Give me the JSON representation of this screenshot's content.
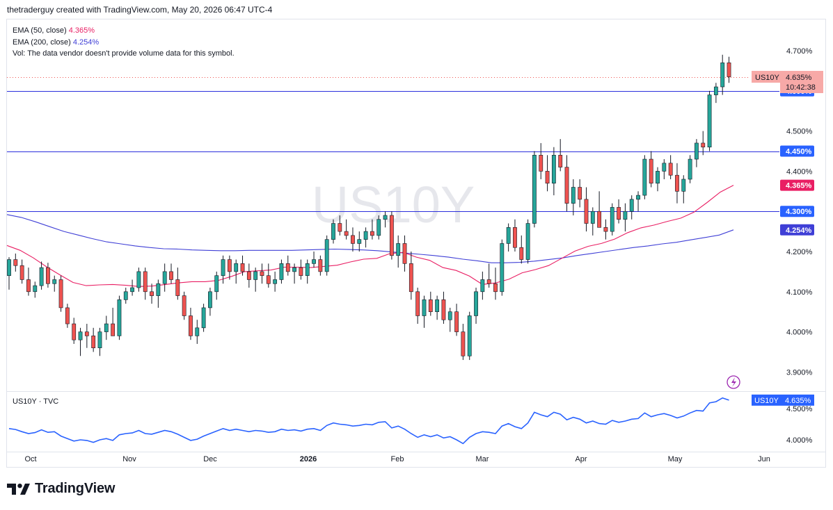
{
  "header": {
    "attribution": "thetraderguy created with TradingView.com, May 20, 2026 06:47 UTC-4"
  },
  "legend": {
    "ema50_label": "EMA (50, close)",
    "ema50_value": "4.365%",
    "ema200_label": "EMA (200, close)",
    "ema200_value": "4.254%",
    "vol_text": "Vol: The data vendor doesn't provide volume data for this symbol."
  },
  "sub_pane": {
    "label": "US10Y · TVC"
  },
  "footer": {
    "brand": "TradingView"
  },
  "colors": {
    "up": "#26a69a",
    "down": "#ef5350",
    "ema50": "#e91e63",
    "ema200": "#3f3fd6",
    "hline": "#2a2edc",
    "compare": "#2962ff",
    "last_bg": "#f7a9a7"
  },
  "chart_data": [
    {
      "type": "candlestick",
      "watermark": "US10Y",
      "y_axis": {
        "ticks": [
          "4.700%",
          "4.500%",
          "4.400%",
          "4.200%",
          "4.100%",
          "4.000%",
          "3.900%"
        ],
        "tick_values": [
          4.7,
          4.5,
          4.4,
          4.2,
          4.1,
          4.0,
          3.9
        ],
        "range": [
          3.86,
          4.75
        ]
      },
      "x_axis": {
        "ticks": [
          "Oct",
          "Nov",
          "Dec",
          "2026",
          "Feb",
          "Mar",
          "Apr",
          "May",
          "Jun"
        ]
      },
      "horizontal_lines": [
        {
          "value": 4.6,
          "label": "4.600%"
        },
        {
          "value": 4.45,
          "label": "4.450%"
        },
        {
          "value": 4.3,
          "label": "4.300%"
        }
      ],
      "last_price": {
        "symbol": "US10Y",
        "value": 4.635,
        "label": "4.635%",
        "countdown": "10:42:38"
      },
      "ema50": {
        "label": "4.365%",
        "value": 4.365,
        "values": [
          4.215,
          4.203,
          4.184,
          4.162,
          4.142,
          4.123,
          4.115,
          4.117,
          4.118,
          4.116,
          4.113,
          4.114,
          4.118,
          4.122,
          4.125,
          4.125,
          4.128,
          4.138,
          4.15,
          4.152,
          4.154,
          4.161,
          4.161,
          4.16,
          4.163,
          4.166,
          4.174,
          4.181,
          4.183,
          4.195,
          4.198,
          4.186,
          4.178,
          4.16,
          4.153,
          4.139,
          4.118,
          4.122,
          4.131,
          4.147,
          4.155,
          4.165,
          4.183,
          4.201,
          4.213,
          4.22,
          4.231,
          4.247,
          4.259,
          4.266,
          4.275,
          4.283,
          4.298,
          4.322,
          4.348,
          4.365
        ]
      },
      "ema200": {
        "label": "4.254%",
        "value": 4.254,
        "values": [
          4.292,
          4.285,
          4.274,
          4.262,
          4.25,
          4.241,
          4.232,
          4.224,
          4.219,
          4.214,
          4.21,
          4.207,
          4.206,
          4.204,
          4.203,
          4.202,
          4.202,
          4.203,
          4.203,
          4.203,
          4.203,
          4.204,
          4.205,
          4.206,
          4.205,
          4.204,
          4.202,
          4.199,
          4.196,
          4.193,
          4.19,
          4.186,
          4.181,
          4.177,
          4.172,
          4.172,
          4.173,
          4.176,
          4.18,
          4.184,
          4.19,
          4.195,
          4.2,
          4.205,
          4.21,
          4.214,
          4.219,
          4.223,
          4.229,
          4.235,
          4.241,
          4.254
        ]
      },
      "candles": [
        [
          4.14,
          4.186,
          4.105,
          4.18
        ],
        [
          4.18,
          4.195,
          4.15,
          4.165
        ],
        [
          4.165,
          4.18,
          4.12,
          4.13
        ],
        [
          4.13,
          4.16,
          4.09,
          4.1
        ],
        [
          4.1,
          4.125,
          4.085,
          4.115
        ],
        [
          4.115,
          4.175,
          4.105,
          4.16
        ],
        [
          4.16,
          4.172,
          4.11,
          4.12
        ],
        [
          4.12,
          4.14,
          4.1,
          4.13
        ],
        [
          4.13,
          4.14,
          4.05,
          4.06
        ],
        [
          4.06,
          4.07,
          4.01,
          4.02
        ],
        [
          4.02,
          4.035,
          3.97,
          3.98
        ],
        [
          3.98,
          4.01,
          3.94,
          4.0
        ],
        [
          4.0,
          4.02,
          3.96,
          3.99
        ],
        [
          3.99,
          4.01,
          3.95,
          3.96
        ],
        [
          3.96,
          4.01,
          3.94,
          4.0
        ],
        [
          4.0,
          4.04,
          3.98,
          4.02
        ],
        [
          4.02,
          4.06,
          3.99,
          3.99
        ],
        [
          3.99,
          4.09,
          3.98,
          4.08
        ],
        [
          4.08,
          4.11,
          4.07,
          4.1
        ],
        [
          4.1,
          4.13,
          4.09,
          4.11
        ],
        [
          4.11,
          4.16,
          4.1,
          4.15
        ],
        [
          4.15,
          4.16,
          4.08,
          4.1
        ],
        [
          4.1,
          4.12,
          4.07,
          4.09
        ],
        [
          4.09,
          4.13,
          4.06,
          4.12
        ],
        [
          4.12,
          4.17,
          4.1,
          4.15
        ],
        [
          4.15,
          4.17,
          4.12,
          4.13
        ],
        [
          4.13,
          4.16,
          4.08,
          4.09
        ],
        [
          4.09,
          4.1,
          4.03,
          4.04
        ],
        [
          4.04,
          4.06,
          3.98,
          3.99
        ],
        [
          3.99,
          4.03,
          3.97,
          4.01
        ],
        [
          4.01,
          4.07,
          4.0,
          4.06
        ],
        [
          4.06,
          4.11,
          4.04,
          4.1
        ],
        [
          4.1,
          4.15,
          4.08,
          4.14
        ],
        [
          4.14,
          4.19,
          4.12,
          4.18
        ],
        [
          4.18,
          4.19,
          4.13,
          4.15
        ],
        [
          4.15,
          4.18,
          4.12,
          4.17
        ],
        [
          4.17,
          4.19,
          4.14,
          4.15
        ],
        [
          4.15,
          4.17,
          4.11,
          4.13
        ],
        [
          4.13,
          4.16,
          4.1,
          4.15
        ],
        [
          4.15,
          4.17,
          4.12,
          4.14
        ],
        [
          4.14,
          4.17,
          4.11,
          4.12
        ],
        [
          4.12,
          4.15,
          4.1,
          4.13
        ],
        [
          4.13,
          4.18,
          4.12,
          4.17
        ],
        [
          4.17,
          4.19,
          4.14,
          4.15
        ],
        [
          4.15,
          4.17,
          4.12,
          4.16
        ],
        [
          4.16,
          4.18,
          4.13,
          4.14
        ],
        [
          4.14,
          4.18,
          4.12,
          4.17
        ],
        [
          4.17,
          4.2,
          4.16,
          4.18
        ],
        [
          4.18,
          4.19,
          4.14,
          4.15
        ],
        [
          4.15,
          4.24,
          4.14,
          4.23
        ],
        [
          4.23,
          4.28,
          4.22,
          4.27
        ],
        [
          4.27,
          4.29,
          4.24,
          4.25
        ],
        [
          4.25,
          4.28,
          4.23,
          4.24
        ],
        [
          4.24,
          4.26,
          4.2,
          4.22
        ],
        [
          4.22,
          4.25,
          4.2,
          4.23
        ],
        [
          4.23,
          4.26,
          4.21,
          4.25
        ],
        [
          4.25,
          4.28,
          4.23,
          4.24
        ],
        [
          4.24,
          4.29,
          4.23,
          4.28
        ],
        [
          4.28,
          4.3,
          4.26,
          4.29
        ],
        [
          4.29,
          4.3,
          4.18,
          4.19
        ],
        [
          4.19,
          4.24,
          4.16,
          4.22
        ],
        [
          4.22,
          4.24,
          4.15,
          4.17
        ],
        [
          4.17,
          4.2,
          4.08,
          4.1
        ],
        [
          4.1,
          4.11,
          4.02,
          4.04
        ],
        [
          4.04,
          4.09,
          4.01,
          4.08
        ],
        [
          4.08,
          4.1,
          4.04,
          4.05
        ],
        [
          4.05,
          4.09,
          4.03,
          4.08
        ],
        [
          4.08,
          4.1,
          4.02,
          4.03
        ],
        [
          4.03,
          4.06,
          4.0,
          4.05
        ],
        [
          4.05,
          4.07,
          3.99,
          4.0
        ],
        [
          4.0,
          4.02,
          3.93,
          3.94
        ],
        [
          3.94,
          4.05,
          3.93,
          4.04
        ],
        [
          4.04,
          4.11,
          4.02,
          4.1
        ],
        [
          4.1,
          4.15,
          4.08,
          4.13
        ],
        [
          4.13,
          4.17,
          4.11,
          4.12
        ],
        [
          4.12,
          4.16,
          4.08,
          4.1
        ],
        [
          4.1,
          4.23,
          4.09,
          4.22
        ],
        [
          4.22,
          4.27,
          4.2,
          4.26
        ],
        [
          4.26,
          4.28,
          4.2,
          4.21
        ],
        [
          4.21,
          4.24,
          4.17,
          4.18
        ],
        [
          4.18,
          4.28,
          4.17,
          4.27
        ],
        [
          4.27,
          4.45,
          4.26,
          4.44
        ],
        [
          4.44,
          4.47,
          4.38,
          4.4
        ],
        [
          4.4,
          4.44,
          4.35,
          4.37
        ],
        [
          4.37,
          4.46,
          4.34,
          4.44
        ],
        [
          4.44,
          4.48,
          4.4,
          4.41
        ],
        [
          4.41,
          4.44,
          4.3,
          4.32
        ],
        [
          4.32,
          4.38,
          4.29,
          4.36
        ],
        [
          4.36,
          4.38,
          4.31,
          4.33
        ],
        [
          4.33,
          4.36,
          4.25,
          4.27
        ],
        [
          4.27,
          4.31,
          4.24,
          4.3
        ],
        [
          4.3,
          4.35,
          4.26,
          4.26
        ],
        [
          4.26,
          4.28,
          4.23,
          4.25
        ],
        [
          4.25,
          4.32,
          4.24,
          4.31
        ],
        [
          4.31,
          4.33,
          4.27,
          4.28
        ],
        [
          4.28,
          4.32,
          4.25,
          4.3
        ],
        [
          4.3,
          4.34,
          4.28,
          4.33
        ],
        [
          4.33,
          4.35,
          4.3,
          4.34
        ],
        [
          4.34,
          4.44,
          4.33,
          4.43
        ],
        [
          4.43,
          4.45,
          4.36,
          4.37
        ],
        [
          4.37,
          4.41,
          4.35,
          4.4
        ],
        [
          4.4,
          4.43,
          4.38,
          4.42
        ],
        [
          4.42,
          4.44,
          4.38,
          4.39
        ],
        [
          4.39,
          4.42,
          4.32,
          4.35
        ],
        [
          4.35,
          4.39,
          4.32,
          4.38
        ],
        [
          4.38,
          4.44,
          4.37,
          4.43
        ],
        [
          4.43,
          4.48,
          4.41,
          4.47
        ],
        [
          4.47,
          4.5,
          4.44,
          4.46
        ],
        [
          4.46,
          4.6,
          4.45,
          4.59
        ],
        [
          4.59,
          4.62,
          4.57,
          4.61
        ],
        [
          4.61,
          4.69,
          4.59,
          4.67
        ],
        [
          4.67,
          4.685,
          4.62,
          4.635
        ]
      ],
      "compare_series": {
        "label": "US10Y · TVC",
        "symbol": "US10Y",
        "value_label": "4.635%",
        "ticks": [
          "4.500%",
          "4.000%"
        ],
        "tick_values": [
          4.5,
          4.0
        ]
      }
    }
  ]
}
